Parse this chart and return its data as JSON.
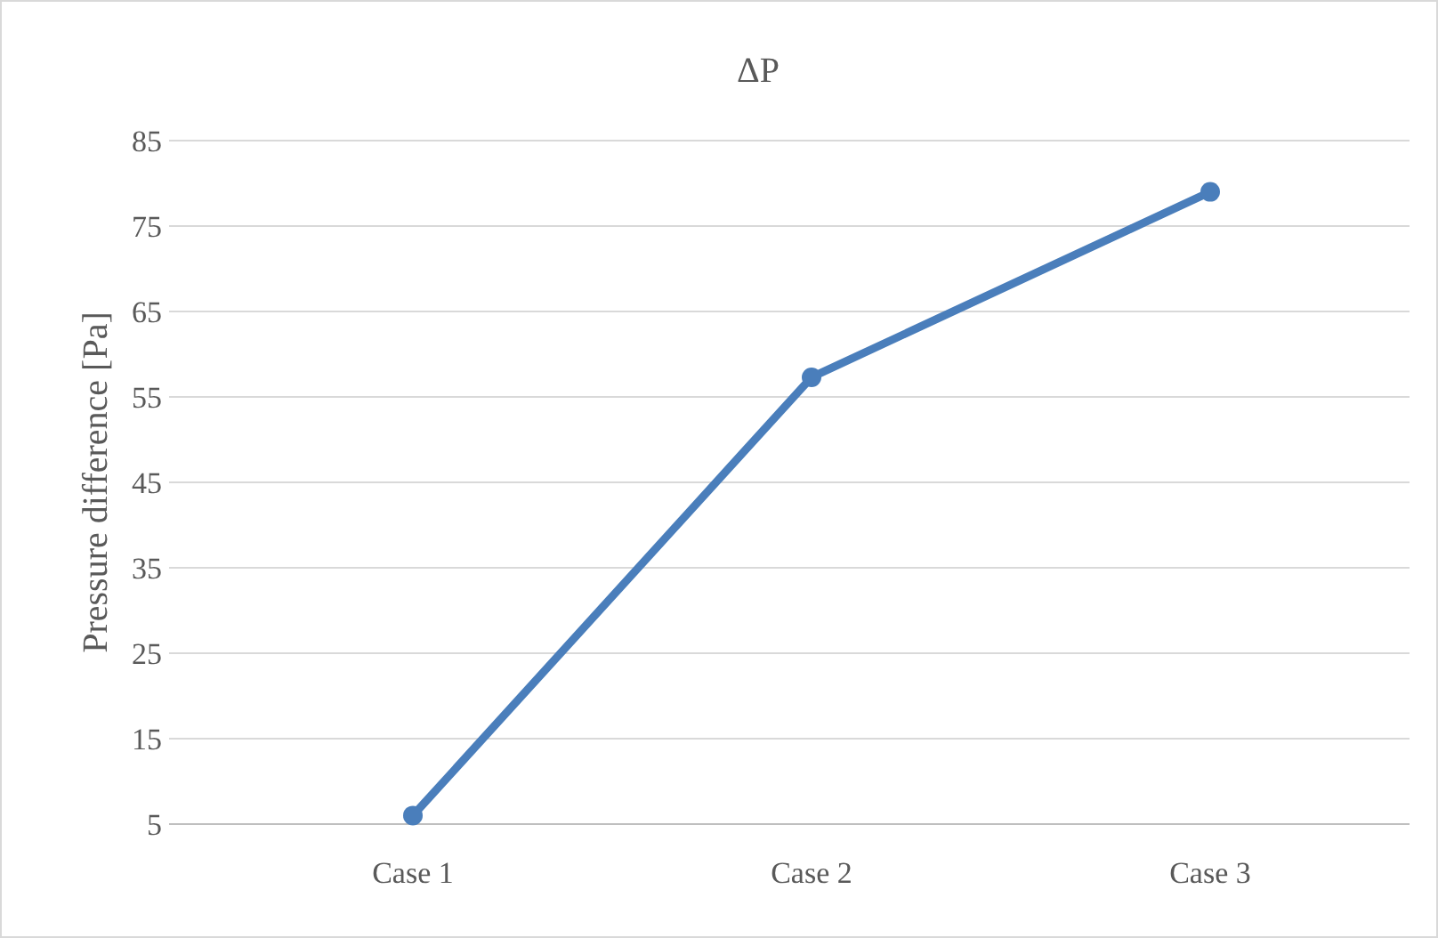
{
  "chart_data": {
    "type": "line",
    "title": "ΔP",
    "ylabel": "Pressure difference [Pa]",
    "categories": [
      "Case 1",
      "Case 2",
      "Case 3"
    ],
    "series": [
      {
        "color": "#4a7ebb",
        "values": [
          6.0,
          57.3,
          79.0
        ]
      }
    ],
    "ylim": [
      5,
      85
    ],
    "yticks": [
      5,
      15,
      25,
      35,
      45,
      55,
      65,
      75,
      85
    ],
    "grid": "y",
    "marker": "circle",
    "line_style": "solid"
  }
}
